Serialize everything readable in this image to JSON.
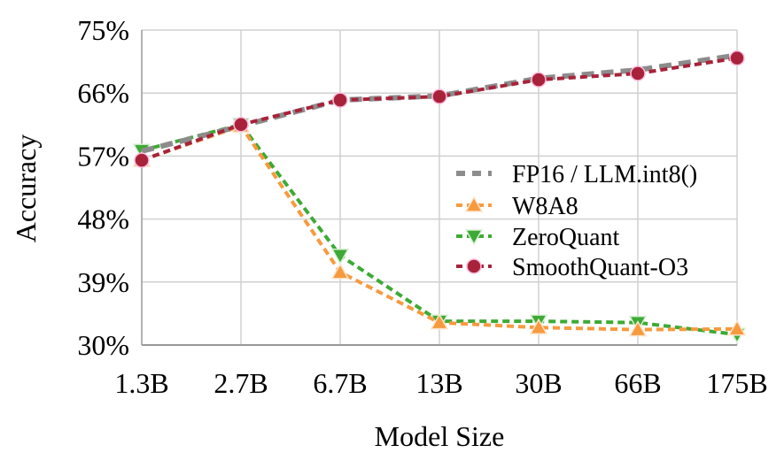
{
  "chart_data": {
    "type": "line",
    "title": "",
    "xlabel": "Model Size",
    "ylabel": "Accuracy",
    "categories": [
      "1.3B",
      "2.7B",
      "6.7B",
      "13B",
      "30B",
      "66B",
      "175B"
    ],
    "yticks": [
      "30%",
      "39%",
      "48%",
      "57%",
      "66%",
      "75%"
    ],
    "ytick_values": [
      30,
      39,
      48,
      57,
      66,
      75
    ],
    "ylim": [
      30,
      75
    ],
    "grid": true,
    "legend_position": "right-middle",
    "series": [
      {
        "name": "FP16 / LLM.int8()",
        "color": "#8c8c8c",
        "marker": "none",
        "values": [
          57.7,
          61.3,
          65.0,
          65.6,
          68.1,
          69.3,
          71.4
        ]
      },
      {
        "name": "W8A8",
        "color": "#f79a3e",
        "marker": "triangle-up",
        "values": [
          56.4,
          61.3,
          40.4,
          33.2,
          32.5,
          32.2,
          32.3
        ]
      },
      {
        "name": "ZeroQuant",
        "color": "#3daa35",
        "marker": "triangle-down",
        "values": [
          57.8,
          61.5,
          42.8,
          33.4,
          33.4,
          33.2,
          31.5
        ]
      },
      {
        "name": "SmoothQuant-O3",
        "color": "#a8223a",
        "marker": "circle",
        "values": [
          56.4,
          61.5,
          65.0,
          65.5,
          67.9,
          68.8,
          71.0
        ]
      }
    ]
  }
}
